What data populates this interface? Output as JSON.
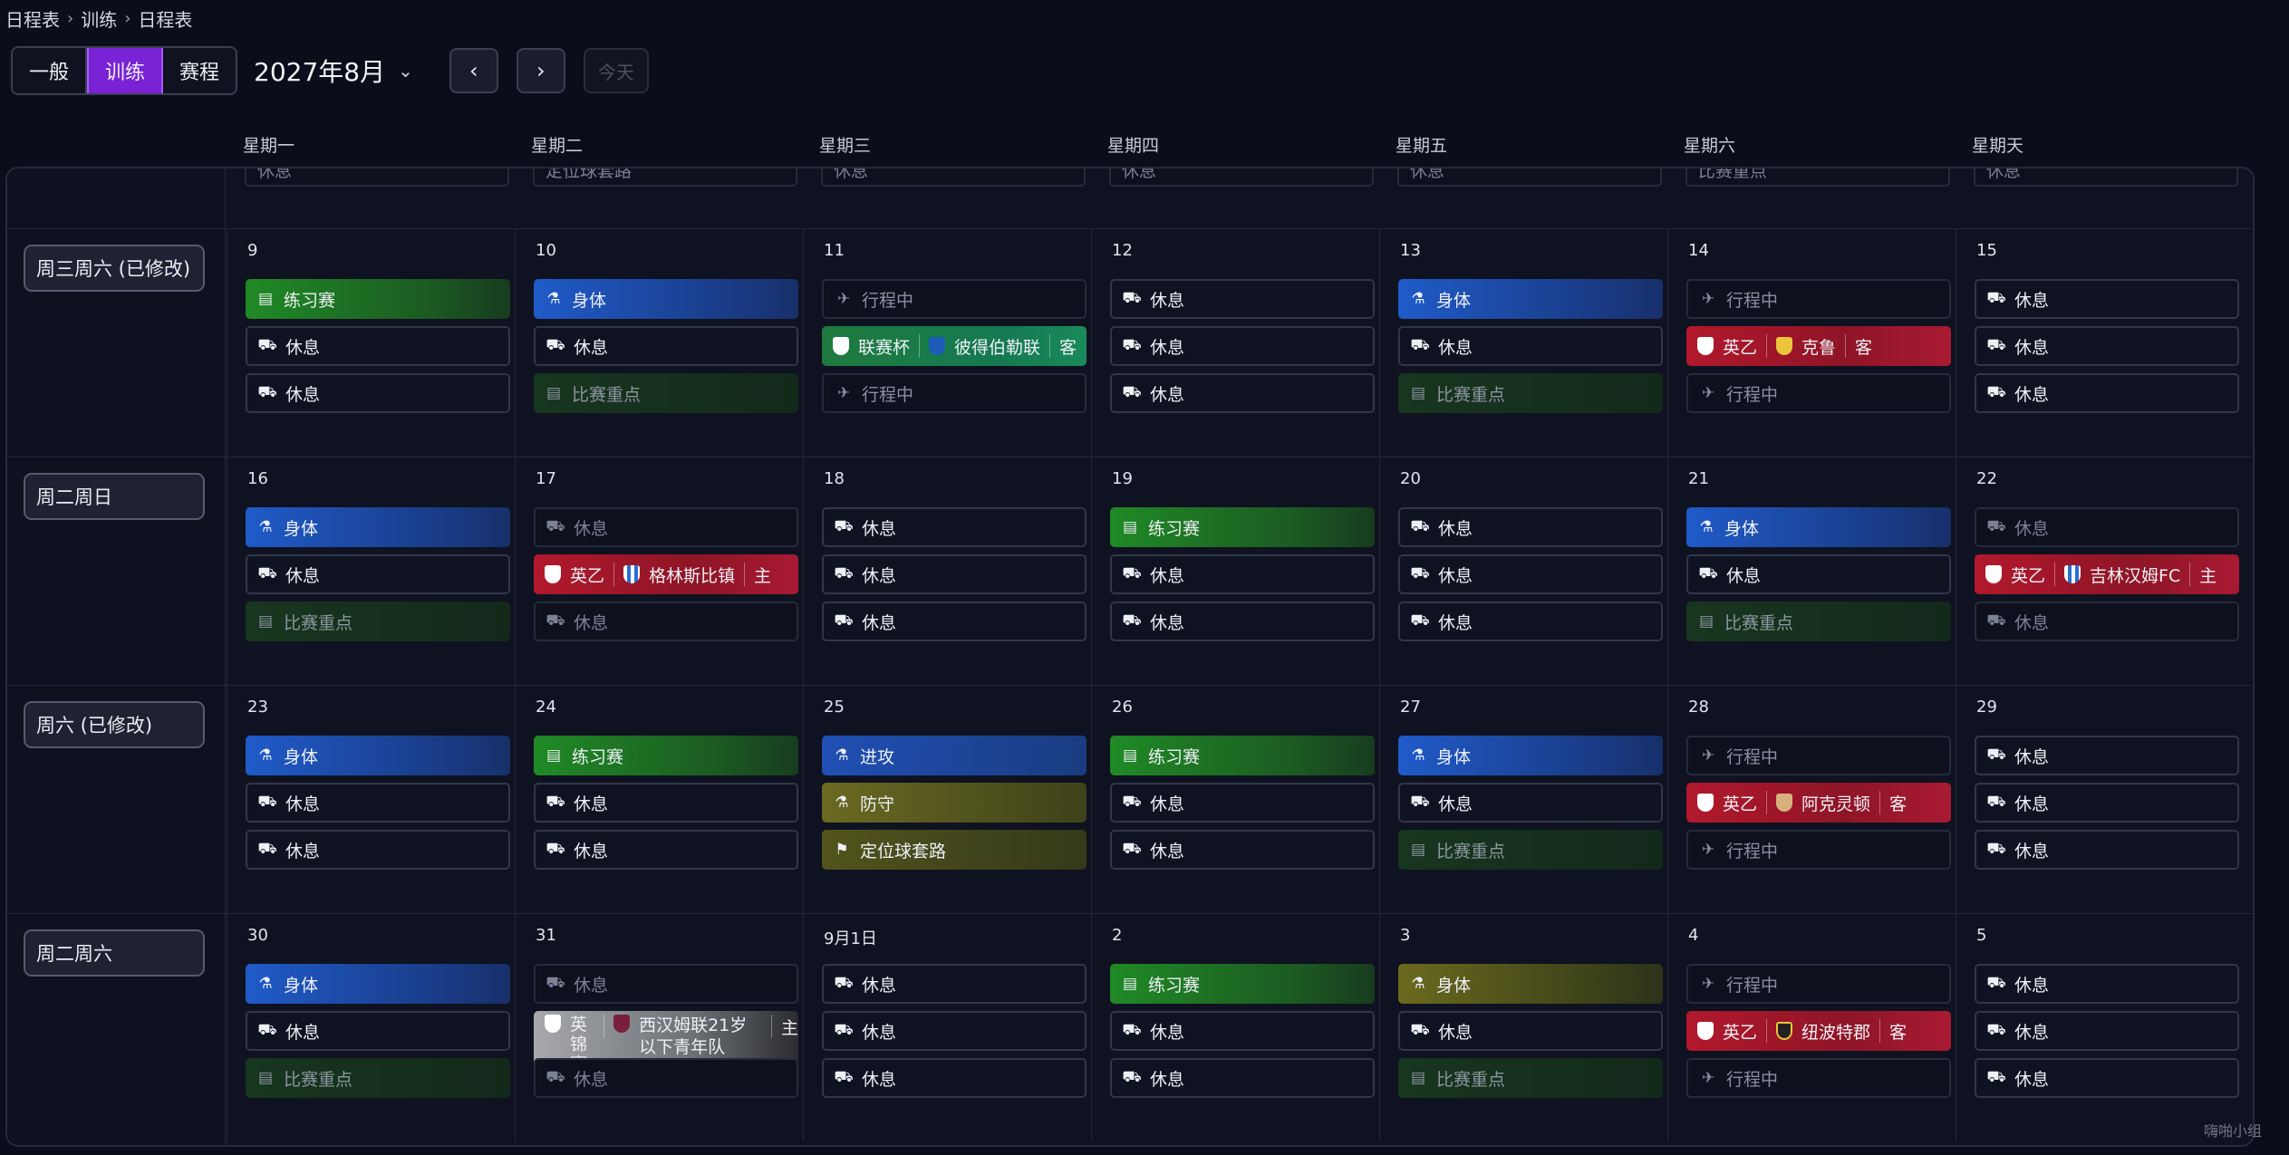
{
  "breadcrumb": [
    "日程表",
    "训练",
    "日程表"
  ],
  "tabs": [
    {
      "label": "一般",
      "active": false
    },
    {
      "label": "训练",
      "active": true
    },
    {
      "label": "赛程",
      "active": false
    }
  ],
  "month_label": "2027年8月",
  "today_label": "今天",
  "weekdays": [
    "星期一",
    "星期二",
    "星期三",
    "星期四",
    "星期五",
    "星期六",
    "星期天"
  ],
  "top_partial": [
    "休息",
    "定位球套路",
    "休息",
    "休息",
    "休息",
    "比赛重点",
    "休息"
  ],
  "weeks": [
    {
      "label": "周三周六 (已修改)",
      "days": [
        {
          "num": "9",
          "events": [
            {
              "t": "prac",
              "text": "练习赛",
              "icon": "▤"
            },
            {
              "t": "rest",
              "text": "休息",
              "icon": "⛟"
            },
            {
              "t": "rest",
              "text": "休息",
              "icon": "⛟"
            }
          ]
        },
        {
          "num": "10",
          "events": [
            {
              "t": "phys",
              "text": "身体",
              "icon": "⚗"
            },
            {
              "t": "rest",
              "text": "休息",
              "icon": "⛟"
            },
            {
              "t": "focus",
              "text": "比赛重点",
              "icon": "▤"
            }
          ]
        },
        {
          "num": "11",
          "events": [
            {
              "t": "travel",
              "text": "行程中",
              "icon": "✈"
            },
            {
              "t": "cup",
              "comp": "联赛杯",
              "opp": "彼得伯勒联",
              "venue": "客",
              "c1": "",
              "c2": "blue"
            },
            {
              "t": "travel",
              "text": "行程中",
              "icon": "✈"
            }
          ]
        },
        {
          "num": "12",
          "events": [
            {
              "t": "rest",
              "text": "休息",
              "icon": "⛟"
            },
            {
              "t": "rest",
              "text": "休息",
              "icon": "⛟"
            },
            {
              "t": "rest",
              "text": "休息",
              "icon": "⛟"
            }
          ]
        },
        {
          "num": "13",
          "events": [
            {
              "t": "phys",
              "text": "身体",
              "icon": "⚗"
            },
            {
              "t": "rest",
              "text": "休息",
              "icon": "⛟"
            },
            {
              "t": "focus",
              "text": "比赛重点",
              "icon": "▤"
            }
          ]
        },
        {
          "num": "14",
          "events": [
            {
              "t": "travel",
              "text": "行程中",
              "icon": "✈"
            },
            {
              "t": "league",
              "comp": "英乙",
              "opp": "克鲁",
              "venue": "客",
              "c1": "",
              "c2": "yel"
            },
            {
              "t": "travel",
              "text": "行程中",
              "icon": "✈"
            }
          ]
        },
        {
          "num": "15",
          "events": [
            {
              "t": "rest",
              "text": "休息",
              "icon": "⛟"
            },
            {
              "t": "rest",
              "text": "休息",
              "icon": "⛟"
            },
            {
              "t": "rest",
              "text": "休息",
              "icon": "⛟"
            }
          ]
        }
      ]
    },
    {
      "label": "周二周日",
      "days": [
        {
          "num": "16",
          "events": [
            {
              "t": "phys",
              "text": "身体",
              "icon": "⚗"
            },
            {
              "t": "rest",
              "text": "休息",
              "icon": "⛟"
            },
            {
              "t": "focus",
              "text": "比赛重点",
              "icon": "▤"
            }
          ]
        },
        {
          "num": "17",
          "events": [
            {
              "t": "rest-dim",
              "text": "休息",
              "icon": "⛟"
            },
            {
              "t": "league",
              "comp": "英乙",
              "opp": "格林斯比镇",
              "venue": "主",
              "c1": "",
              "c2": "stripe"
            },
            {
              "t": "rest-dim",
              "text": "休息",
              "icon": "⛟"
            }
          ]
        },
        {
          "num": "18",
          "events": [
            {
              "t": "rest",
              "text": "休息",
              "icon": "⛟"
            },
            {
              "t": "rest",
              "text": "休息",
              "icon": "⛟"
            },
            {
              "t": "rest",
              "text": "休息",
              "icon": "⛟"
            }
          ]
        },
        {
          "num": "19",
          "events": [
            {
              "t": "prac",
              "text": "练习赛",
              "icon": "▤"
            },
            {
              "t": "rest",
              "text": "休息",
              "icon": "⛟"
            },
            {
              "t": "rest",
              "text": "休息",
              "icon": "⛟"
            }
          ]
        },
        {
          "num": "20",
          "events": [
            {
              "t": "rest",
              "text": "休息",
              "icon": "⛟"
            },
            {
              "t": "rest",
              "text": "休息",
              "icon": "⛟"
            },
            {
              "t": "rest",
              "text": "休息",
              "icon": "⛟"
            }
          ]
        },
        {
          "num": "21",
          "events": [
            {
              "t": "phys",
              "text": "身体",
              "icon": "⚗"
            },
            {
              "t": "rest",
              "text": "休息",
              "icon": "⛟"
            },
            {
              "t": "focus",
              "text": "比赛重点",
              "icon": "▤"
            }
          ]
        },
        {
          "num": "22",
          "events": [
            {
              "t": "rest-dim",
              "text": "休息",
              "icon": "⛟"
            },
            {
              "t": "league",
              "comp": "英乙",
              "opp": "吉林汉姆FC",
              "venue": "主",
              "c1": "",
              "c2": "stripe"
            },
            {
              "t": "rest-dim",
              "text": "休息",
              "icon": "⛟"
            }
          ]
        }
      ]
    },
    {
      "label": "周六 (已修改)",
      "days": [
        {
          "num": "23",
          "events": [
            {
              "t": "phys",
              "text": "身体",
              "icon": "⚗"
            },
            {
              "t": "rest",
              "text": "休息",
              "icon": "⛟"
            },
            {
              "t": "rest",
              "text": "休息",
              "icon": "⛟"
            }
          ]
        },
        {
          "num": "24",
          "events": [
            {
              "t": "prac",
              "text": "练习赛",
              "icon": "▤"
            },
            {
              "t": "rest",
              "text": "休息",
              "icon": "⛟"
            },
            {
              "t": "rest",
              "text": "休息",
              "icon": "⛟"
            }
          ]
        },
        {
          "num": "25",
          "events": [
            {
              "t": "attack",
              "text": "进攻",
              "icon": "⚗"
            },
            {
              "t": "defend",
              "text": "防守",
              "icon": "⚗"
            },
            {
              "t": "setpiece",
              "text": "定位球套路",
              "icon": "⚑"
            }
          ]
        },
        {
          "num": "26",
          "events": [
            {
              "t": "prac",
              "text": "练习赛",
              "icon": "▤"
            },
            {
              "t": "rest",
              "text": "休息",
              "icon": "⛟"
            },
            {
              "t": "rest",
              "text": "休息",
              "icon": "⛟"
            }
          ]
        },
        {
          "num": "27",
          "events": [
            {
              "t": "phys",
              "text": "身体",
              "icon": "⚗"
            },
            {
              "t": "rest",
              "text": "休息",
              "icon": "⛟"
            },
            {
              "t": "focus",
              "text": "比赛重点",
              "icon": "▤"
            }
          ]
        },
        {
          "num": "28",
          "events": [
            {
              "t": "travel",
              "text": "行程中",
              "icon": "✈"
            },
            {
              "t": "league",
              "comp": "英乙",
              "opp": "阿克灵顿",
              "venue": "客",
              "c1": "",
              "c2": "tan"
            },
            {
              "t": "travel",
              "text": "行程中",
              "icon": "✈"
            }
          ]
        },
        {
          "num": "29",
          "events": [
            {
              "t": "rest",
              "text": "休息",
              "icon": "⛟"
            },
            {
              "t": "rest",
              "text": "休息",
              "icon": "⛟"
            },
            {
              "t": "rest",
              "text": "休息",
              "icon": "⛟"
            }
          ]
        }
      ]
    },
    {
      "label": "周二周六",
      "days": [
        {
          "num": "30",
          "events": [
            {
              "t": "phys",
              "text": "身体",
              "icon": "⚗"
            },
            {
              "t": "rest",
              "text": "休息",
              "icon": "⛟"
            },
            {
              "t": "focus",
              "text": "比赛重点",
              "icon": "▤"
            }
          ]
        },
        {
          "num": "31",
          "events": [
            {
              "t": "rest-dim",
              "text": "休息",
              "icon": "⛟"
            },
            {
              "t": "eflcup",
              "comp": "英锦赛",
              "opp": "西汉姆联21岁以下青年队",
              "venue": "主",
              "c1": "",
              "c2": "claret"
            },
            {
              "t": "rest-dim",
              "text": "休息",
              "icon": "⛟"
            }
          ]
        },
        {
          "num": "9月1日",
          "events": [
            {
              "t": "rest",
              "text": "休息",
              "icon": "⛟"
            },
            {
              "t": "rest",
              "text": "休息",
              "icon": "⛟"
            },
            {
              "t": "rest",
              "text": "休息",
              "icon": "⛟"
            }
          ]
        },
        {
          "num": "2",
          "events": [
            {
              "t": "prac",
              "text": "练习赛",
              "icon": "▤"
            },
            {
              "t": "rest",
              "text": "休息",
              "icon": "⛟"
            },
            {
              "t": "rest",
              "text": "休息",
              "icon": "⛟"
            }
          ]
        },
        {
          "num": "3",
          "events": [
            {
              "t": "phys-olive",
              "text": "身体",
              "icon": "⚗"
            },
            {
              "t": "rest",
              "text": "休息",
              "icon": "⛟"
            },
            {
              "t": "focus",
              "text": "比赛重点",
              "icon": "▤"
            }
          ]
        },
        {
          "num": "4",
          "events": [
            {
              "t": "travel",
              "text": "行程中",
              "icon": "✈"
            },
            {
              "t": "league",
              "comp": "英乙",
              "opp": "纽波特郡",
              "venue": "客",
              "c1": "",
              "c2": "dark"
            },
            {
              "t": "travel",
              "text": "行程中",
              "icon": "✈"
            }
          ]
        },
        {
          "num": "5",
          "events": [
            {
              "t": "rest",
              "text": "休息",
              "icon": "⛟"
            },
            {
              "t": "rest",
              "text": "休息",
              "icon": "⛟"
            },
            {
              "t": "rest",
              "text": "休息",
              "icon": "⛟"
            }
          ]
        }
      ]
    }
  ],
  "watermark": "嗨啪小组"
}
